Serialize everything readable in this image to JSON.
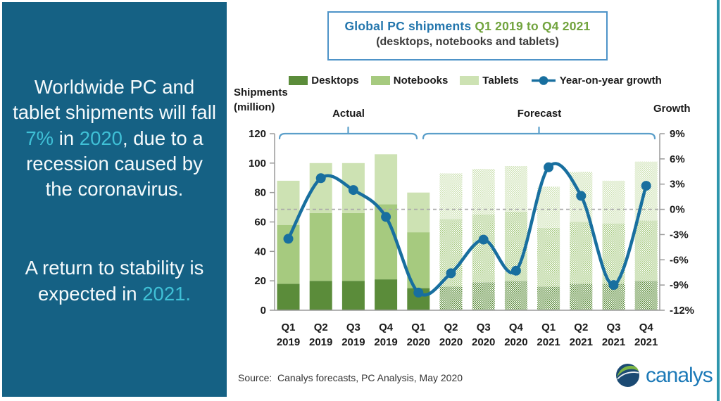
{
  "page": {
    "background": "#ffffff",
    "right_strip_color": "#2e96ad"
  },
  "sidebar": {
    "bg_color": "#156184",
    "text_color": "#f5fafc",
    "accent_color": "#3fc0d6",
    "paragraphs": [
      {
        "segments": [
          {
            "text": "Worldwide PC and tablet shipments will fall "
          },
          {
            "text": "7%",
            "accent": true
          },
          {
            "text": " in "
          },
          {
            "text": "2020",
            "accent": true
          },
          {
            "text": ", due to a recession caused by the coronavirus."
          }
        ]
      },
      {
        "segments": [
          {
            "text": "A return to stability is expected in "
          },
          {
            "text": "2021.",
            "accent": true
          }
        ]
      }
    ]
  },
  "title_box": {
    "border_color": "#4e93c8",
    "line1_segments": [
      {
        "text": "Global PC shipments ",
        "color": "#2376ad"
      },
      {
        "text": "Q1 2019 to Q4 2021",
        "color": "#71a33d"
      }
    ],
    "line2": "(desktops, notebooks and tablets)",
    "line2_color": "#3a3a3a"
  },
  "legend": {
    "bar_items": [
      {
        "label": "Desktops",
        "color": "#5b8c3a"
      },
      {
        "label": "Notebooks",
        "color": "#a6ca7f"
      },
      {
        "label": "Tablets",
        "color": "#cde2b3"
      }
    ],
    "line_item": {
      "label": "Year-on-year growth",
      "color": "#186f9f"
    }
  },
  "axis_titles": {
    "left_line1": "Shipments",
    "left_line2": "(million)",
    "right": "Growth"
  },
  "sections": {
    "actual": "Actual",
    "forecast": "Forecast"
  },
  "source_text": "Source:  Canalys forecasts, PC Analysis, May 2020",
  "logo": {
    "text": "canalys",
    "text_color": "#1d7ab8",
    "globe_navy": "#1b4a73",
    "globe_green": "#7cb544"
  },
  "chart_data": {
    "type": "bar",
    "stacked": true,
    "grid": false,
    "legend_position": "top",
    "title": "Global PC shipments Q1 2019 to Q4 2021 (desktops, notebooks and tablets)",
    "categories": [
      "Q1 2019",
      "Q2 2019",
      "Q3 2019",
      "Q4 2019",
      "Q1 2020",
      "Q2 2020",
      "Q3 2020",
      "Q4 2020",
      "Q1 2021",
      "Q2 2021",
      "Q3 2021",
      "Q4 2021"
    ],
    "series": [
      {
        "name": "Desktops",
        "color": "#5b8c3a",
        "values": [
          18,
          20,
          20,
          21,
          15,
          16,
          19,
          20,
          16,
          18,
          18,
          20
        ]
      },
      {
        "name": "Notebooks",
        "color": "#a6ca7f",
        "values": [
          40,
          46,
          46,
          51,
          38,
          46,
          46,
          47,
          40,
          42,
          41,
          41
        ]
      },
      {
        "name": "Tablets",
        "color": "#cde2b3",
        "values": [
          30,
          34,
          34,
          34,
          27,
          31,
          31,
          31,
          28,
          34,
          29,
          40
        ]
      }
    ],
    "bar_totals": [
      88,
      100,
      100,
      106,
      80,
      93,
      96,
      98,
      84,
      94,
      88,
      101
    ],
    "line_series": {
      "name": "Year-on-year growth",
      "axis": "right",
      "color": "#186f9f",
      "values": [
        -3.5,
        3.7,
        2.3,
        -0.9,
        -9.9,
        -7.6,
        -3.6,
        -7.3,
        5.0,
        1.6,
        -9.0,
        2.8
      ]
    },
    "left_axis": {
      "label": "Shipments (million)",
      "min": 0,
      "max": 120,
      "ticks": [
        0,
        20,
        40,
        60,
        80,
        100,
        120
      ]
    },
    "right_axis": {
      "label": "Growth",
      "min": -12,
      "max": 9,
      "ticks": [
        9,
        6,
        3,
        0,
        -3,
        -6,
        -9,
        -12
      ],
      "tick_suffix": "%"
    },
    "actual_categories": 5,
    "forecast_categories": 7,
    "forecast_style": "hatched",
    "zero_line": {
      "style": "dashed",
      "color": "#a9a9a9"
    },
    "axis_color": "#9a9a9a",
    "bracket_color": "#5b9fca",
    "tick_label_color": "#1a1a1a"
  }
}
